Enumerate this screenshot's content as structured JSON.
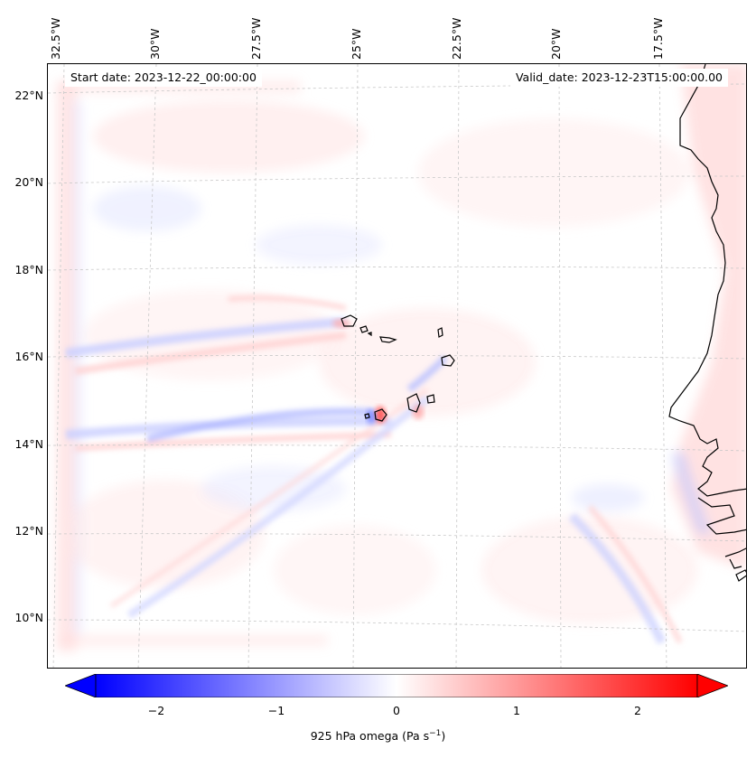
{
  "map": {
    "start_date_label": "Start date: 2023-12-22_00:00:00",
    "valid_date_label": "Valid_date: 2023-12-23T15:00:00.00",
    "longitude_labels": [
      "32.5°W",
      "30°W",
      "27.5°W",
      "25°W",
      "22.5°W",
      "20°W",
      "17.5°W"
    ],
    "latitude_labels": [
      "22°N",
      "20°N",
      "18°N",
      "16°N",
      "14°N",
      "12°N",
      "10°N"
    ],
    "field": "925 hPa omega",
    "colormap": "bwr",
    "coastline_color": "#000000",
    "gridline_color": "#c8c8c8"
  },
  "colorbar": {
    "tick_labels": [
      "−2",
      "−1",
      "0",
      "1",
      "2"
    ],
    "range": [
      -2.5,
      2.5
    ],
    "extend": "both",
    "label_text": "925 hPa omega (Pa s",
    "label_sup": "−1",
    "label_close": ")",
    "low_color": "#0000ff",
    "mid_color": "#ffffff",
    "high_color": "#ff0000"
  }
}
